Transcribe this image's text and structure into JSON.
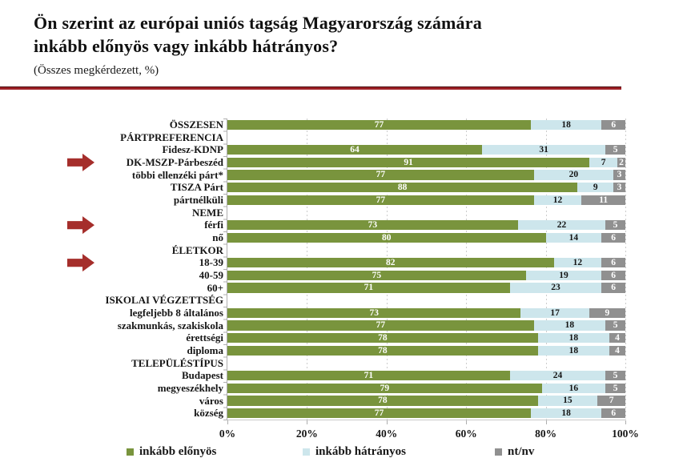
{
  "header": {
    "title_line1": "Ön szerint az európai uniós tagság Magyarország számára",
    "title_line2": "inkább előnyös vagy inkább hátrányos?",
    "subtitle": "(Összes megkérdezett, %)"
  },
  "colors": {
    "series": [
      "#79943D",
      "#CDE6EC",
      "#909090"
    ],
    "value_text": [
      "#FFFFFF",
      "#141414",
      "#FFFFFF"
    ],
    "arrow": "#A52E2B",
    "divider": "#9E2127"
  },
  "legend": [
    {
      "label": "inkább előnyös",
      "color": "#79943D"
    },
    {
      "label": "inkább hátrányos",
      "color": "#CDE6EC"
    },
    {
      "label": "nt/nv",
      "color": "#909090"
    }
  ],
  "chart_data": {
    "type": "bar",
    "orientation": "horizontal-stacked",
    "title": "Ön szerint az európai uniós tagság Magyarország számára inkább előnyös vagy inkább hátrányos?",
    "subtitle": "(Összes megkérdezett, %)",
    "series_names": [
      "inkább előnyös",
      "inkább hátrányos",
      "nt/nv"
    ],
    "xlim": [
      0,
      100
    ],
    "x_ticks": [
      "0%",
      "20%",
      "40%",
      "60%",
      "80%",
      "100%"
    ],
    "grid": "vertical-dotted",
    "legend_position": "bottom",
    "rows": [
      {
        "label": "ÖSSZESEN",
        "values": [
          77,
          18,
          6
        ]
      },
      {
        "label": "PÁRTPREFERENCIA",
        "header": true
      },
      {
        "label": "Fidesz-KDNP",
        "values": [
          64,
          31,
          5
        ]
      },
      {
        "label": "DK-MSZP-Párbeszéd",
        "values": [
          91,
          7,
          2
        ],
        "arrow": true
      },
      {
        "label": "többi ellenzéki párt*",
        "values": [
          77,
          20,
          3
        ]
      },
      {
        "label": "TISZA Párt",
        "values": [
          88,
          9,
          3
        ]
      },
      {
        "label": "pártnélküli",
        "values": [
          77,
          12,
          11
        ]
      },
      {
        "label": "NEME",
        "header": true
      },
      {
        "label": "férfi",
        "values": [
          73,
          22,
          5
        ],
        "arrow": true
      },
      {
        "label": "nő",
        "values": [
          80,
          14,
          6
        ]
      },
      {
        "label": "ÉLETKOR",
        "header": true
      },
      {
        "label": "18-39",
        "values": [
          82,
          12,
          6
        ],
        "arrow": true
      },
      {
        "label": "40-59",
        "values": [
          75,
          19,
          6
        ]
      },
      {
        "label": "60+",
        "values": [
          71,
          23,
          6
        ]
      },
      {
        "label": "ISKOLAI VÉGZETTSÉG",
        "header": true
      },
      {
        "label": "legfeljebb 8 általános",
        "values": [
          73,
          17,
          9
        ]
      },
      {
        "label": "szakmunkás, szakiskola",
        "values": [
          77,
          18,
          5
        ]
      },
      {
        "label": "érettségi",
        "values": [
          78,
          18,
          4
        ]
      },
      {
        "label": "diploma",
        "values": [
          78,
          18,
          4
        ]
      },
      {
        "label": "TELEPÜLÉSTÍPUS",
        "header": true
      },
      {
        "label": "Budapest",
        "values": [
          71,
          24,
          5
        ]
      },
      {
        "label": "megyeszékhely",
        "values": [
          79,
          16,
          5
        ]
      },
      {
        "label": "város",
        "values": [
          78,
          15,
          7
        ]
      },
      {
        "label": "község",
        "values": [
          77,
          18,
          6
        ]
      }
    ]
  }
}
